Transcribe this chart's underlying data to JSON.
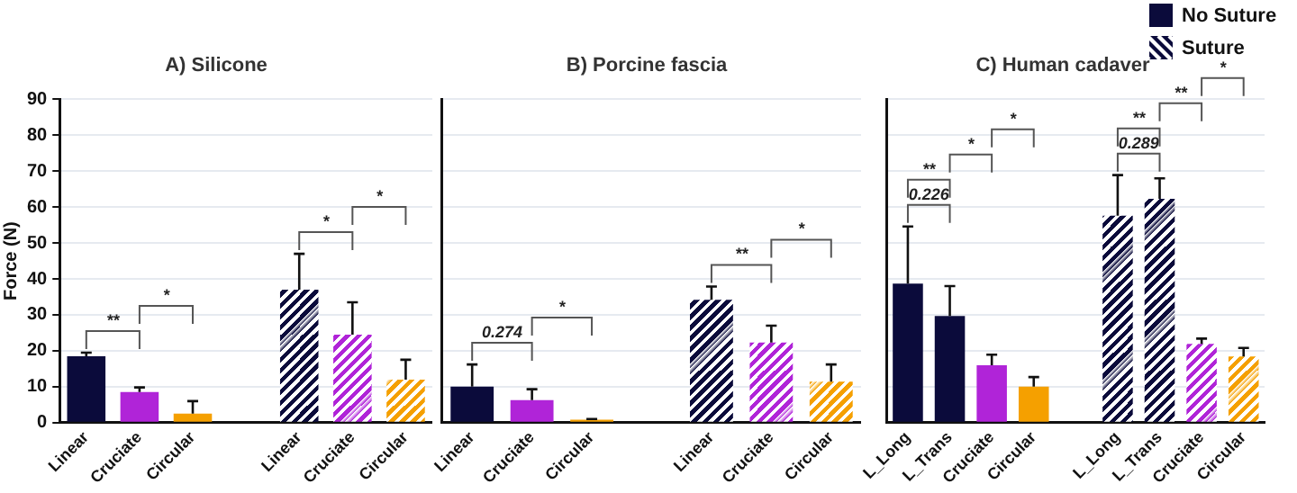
{
  "chart_data": [
    {
      "type": "bar",
      "title": "A) Silicone",
      "ylabel": "Force (N)",
      "categories": [
        "Linear",
        "Cruciate",
        "Circular",
        null,
        "Linear",
        "Cruciate",
        "Circular"
      ],
      "series": [
        {
          "color": "#0b0b3b",
          "colors": [
            "#0b0b3b",
            "#b024d8",
            "#f5a000",
            null,
            null,
            null,
            null
          ],
          "values": [
            18.5,
            8.5,
            2.5,
            null,
            null,
            null,
            null
          ],
          "errors": [
            [
              18.5,
              19.5
            ],
            [
              8.5,
              9.8
            ],
            [
              2.5,
              6
            ],
            null,
            null,
            null,
            null
          ]
        },
        {
          "color": "#0b0b3b",
          "colors": [
            null,
            null,
            null,
            null,
            "#0b0b3b",
            "#b024d8",
            "#f5a000"
          ],
          "values": [
            null,
            null,
            null,
            null,
            37,
            24.5,
            12
          ],
          "errors": [
            null,
            null,
            null,
            null,
            [
              37,
              47
            ],
            [
              24.5,
              33.5
            ],
            [
              12,
              17.5
            ]
          ]
        }
      ],
      "annotations": [
        "**",
        "*",
        "*",
        "*"
      ],
      "ylim": [
        0,
        90
      ],
      "yticks": [
        0,
        10,
        20,
        30,
        40,
        50,
        60,
        70,
        80,
        90
      ],
      "grid": "y"
    },
    {
      "type": "bar",
      "title": "B) Porcine fascia",
      "categories": [
        "Linear",
        "Cruciate",
        "Circular",
        null,
        "Linear",
        "Cruciate",
        "Circular"
      ],
      "series": [
        {
          "color": "#0b0b3b",
          "colors": [
            "#0b0b3b",
            "#b024d8",
            "#f5a000",
            null,
            null,
            null,
            null
          ],
          "values": [
            10,
            6.3,
            0.8,
            null,
            null,
            null,
            null
          ],
          "errors": [
            [
              10,
              16.2
            ],
            [
              6.3,
              9.3
            ],
            [
              0.8,
              1
            ],
            null,
            null,
            null,
            null
          ]
        },
        {
          "color": "#0b0b3b",
          "colors": [
            null,
            null,
            null,
            null,
            "#0b0b3b",
            "#b024d8",
            "#f5a000"
          ],
          "values": [
            null,
            null,
            null,
            null,
            34.2,
            22.3,
            11.4
          ],
          "errors": [
            null,
            null,
            null,
            null,
            [
              34.2,
              37.9
            ],
            [
              22.3,
              27
            ],
            [
              11.4,
              16.2
            ]
          ]
        }
      ],
      "annotations": [
        "0.274",
        "*",
        "**",
        "*"
      ],
      "ylim": [
        0,
        90
      ],
      "yticks": [
        0,
        10,
        20,
        30,
        40,
        50,
        60,
        70,
        80,
        90
      ],
      "grid": "y",
      "tick_labels": "x"
    },
    {
      "type": "bar",
      "title": "C) Human cadaver",
      "categories": [
        "L_Long",
        "L_Trans",
        "Cruciate",
        "Circular",
        null,
        "L_Long",
        "L_Trans",
        "Cruciate",
        "Circular"
      ],
      "series": [
        {
          "name": "No Suture",
          "color": "#0b0b3b",
          "colors": [
            "#0b0b3b",
            "#0b0b3b",
            "#b024d8",
            "#f5a000",
            null,
            null,
            null,
            null,
            null
          ],
          "values": [
            38.7,
            29.7,
            16,
            10,
            null,
            null,
            null,
            null,
            null
          ],
          "errors": [
            [
              38.7,
              54.6
            ],
            [
              29.7,
              38
            ],
            [
              16,
              18.9
            ],
            [
              10,
              12.7
            ],
            null,
            null,
            null,
            null,
            null
          ]
        },
        {
          "name": "Suture",
          "color": "#0b0b3b",
          "colors": [
            null,
            null,
            null,
            null,
            null,
            "#0b0b3b",
            "#0b0b3b",
            "#b024d8",
            "#f5a000"
          ],
          "values": [
            null,
            null,
            null,
            null,
            null,
            57.6,
            62.3,
            21.9,
            18.4
          ],
          "errors": [
            null,
            null,
            null,
            null,
            null,
            [
              57.6,
              68.9
            ],
            [
              62.3,
              68
            ],
            [
              21.9,
              23.4
            ],
            [
              18.4,
              20.8
            ]
          ]
        }
      ],
      "annotations": [
        "0.226",
        "**",
        "*",
        "*",
        "0.289",
        "**",
        "**",
        "*"
      ],
      "ylim": [
        0,
        90
      ],
      "yticks": [
        0,
        10,
        20,
        30,
        40,
        50,
        60,
        70,
        80,
        90
      ],
      "grid": "y",
      "tick_labels": "x",
      "legend": "top right"
    }
  ]
}
